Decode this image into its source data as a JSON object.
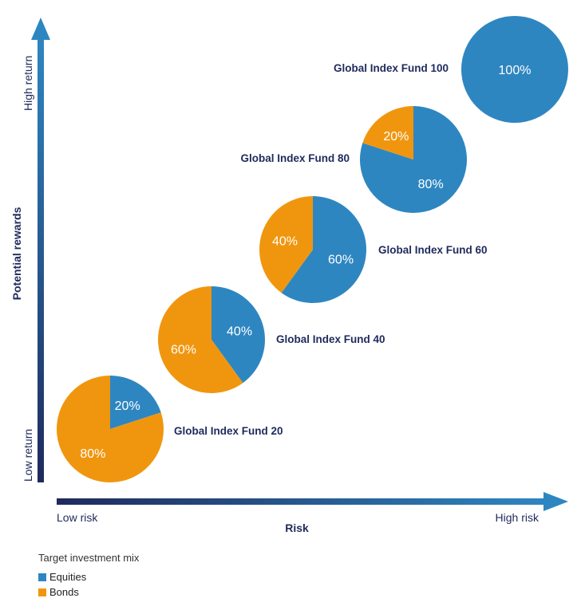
{
  "chart_data": {
    "type": "pie",
    "xlabel": "Risk",
    "ylabel": "Potential rewards",
    "x_axis_ends": {
      "low": "Low risk",
      "high": "High risk"
    },
    "y_axis_ends": {
      "low": "Low return",
      "high": "High return"
    },
    "categories": [
      "Global Index Fund 20",
      "Global Index Fund 40",
      "Global Index Fund 60",
      "Global Index Fund 80",
      "Global Index Fund 100"
    ],
    "series": [
      {
        "name": "Equities",
        "values": [
          20,
          40,
          60,
          80,
          100
        ]
      },
      {
        "name": "Bonds",
        "values": [
          80,
          60,
          40,
          20,
          0
        ]
      }
    ],
    "value_labels": {
      "equities": [
        "20%",
        "40%",
        "60%",
        "80%",
        "100%"
      ],
      "bonds": [
        "80%",
        "60%",
        "40%",
        "20%",
        ""
      ]
    },
    "legend": {
      "title": "Target investment mix",
      "items": [
        "Equities",
        "Bonds"
      ],
      "placement": "bottom-left"
    }
  },
  "colors": {
    "equities": "#2e86c1",
    "bonds": "#f0960e",
    "axis_dark": "#1f2a5c",
    "axis_light": "#2e86c1",
    "label_text": "#1f2a5c"
  }
}
